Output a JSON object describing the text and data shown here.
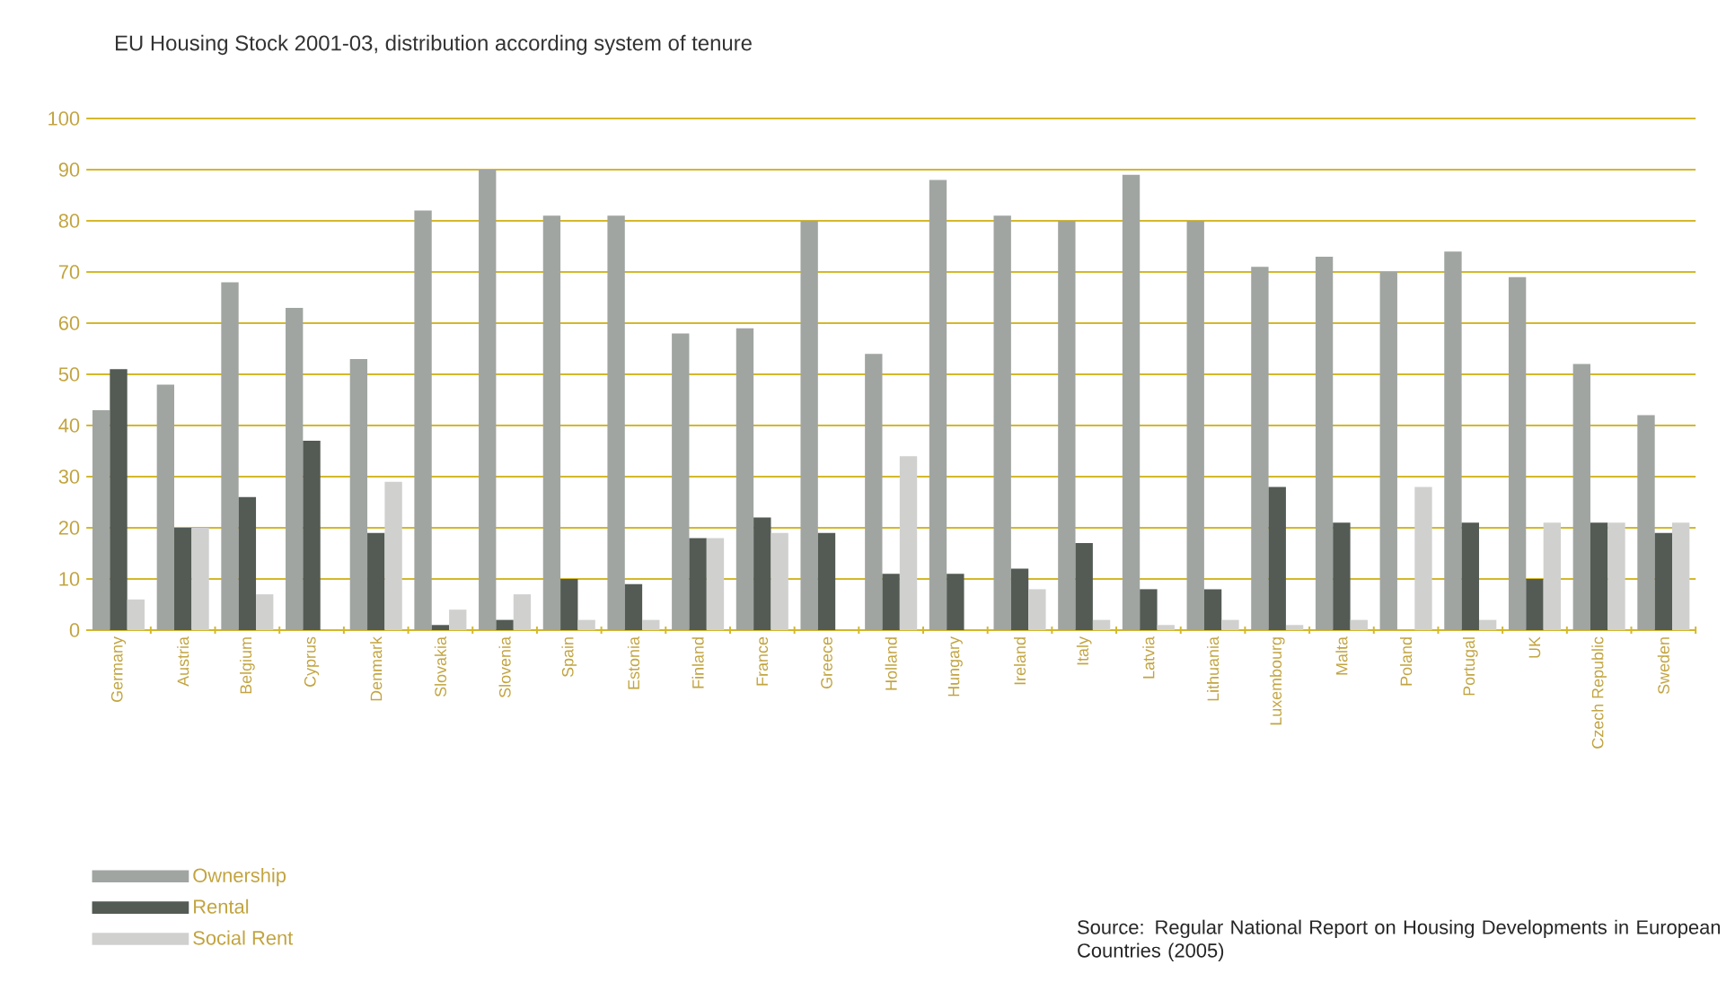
{
  "chart_data": {
    "type": "bar",
    "title": "EU Housing Stock 2001-03, distribution according system of tenure",
    "categories": [
      "Germany",
      "Austria",
      "Belgium",
      "Cyprus",
      "Denmark",
      "Slovakia",
      "Slovenia",
      "Spain",
      "Estonia",
      "Finland",
      "France",
      "Greece",
      "Holland",
      "Hungary",
      "Ireland",
      "Italy",
      "Latvia",
      "Lithuania",
      "Luxembourg",
      "Malta",
      "Poland",
      "Portugal",
      "UK",
      "Czech Republic",
      "Sweden"
    ],
    "series": [
      {
        "name": "Ownership",
        "color": "#a0a5a1",
        "values": [
          43,
          48,
          68,
          63,
          53,
          82,
          90,
          81,
          81,
          58,
          59,
          80,
          54,
          88,
          81,
          80,
          89,
          80,
          71,
          73,
          70,
          74,
          69,
          52,
          42
        ]
      },
      {
        "name": "Rental",
        "color": "#535b54",
        "values": [
          51,
          20,
          26,
          37,
          19,
          1,
          2,
          10,
          9,
          18,
          22,
          19,
          11,
          11,
          12,
          17,
          8,
          8,
          28,
          21,
          null,
          21,
          10,
          21,
          19
        ]
      },
      {
        "name": "Social Rent",
        "color": "#d0d1cf",
        "values": [
          6,
          20,
          7,
          null,
          29,
          4,
          7,
          2,
          2,
          18,
          19,
          null,
          34,
          null,
          8,
          2,
          1,
          2,
          1,
          2,
          28,
          2,
          21,
          21,
          21
        ]
      }
    ],
    "ylim": [
      0,
      100
    ],
    "yticks": [
      0,
      10,
      20,
      30,
      40,
      50,
      60,
      70,
      80,
      90,
      100
    ],
    "grid": "y",
    "legend": "bottom left",
    "annotations": [
      "Source: Regular National Report on Housing Developments in European Countries (2005)"
    ]
  }
}
